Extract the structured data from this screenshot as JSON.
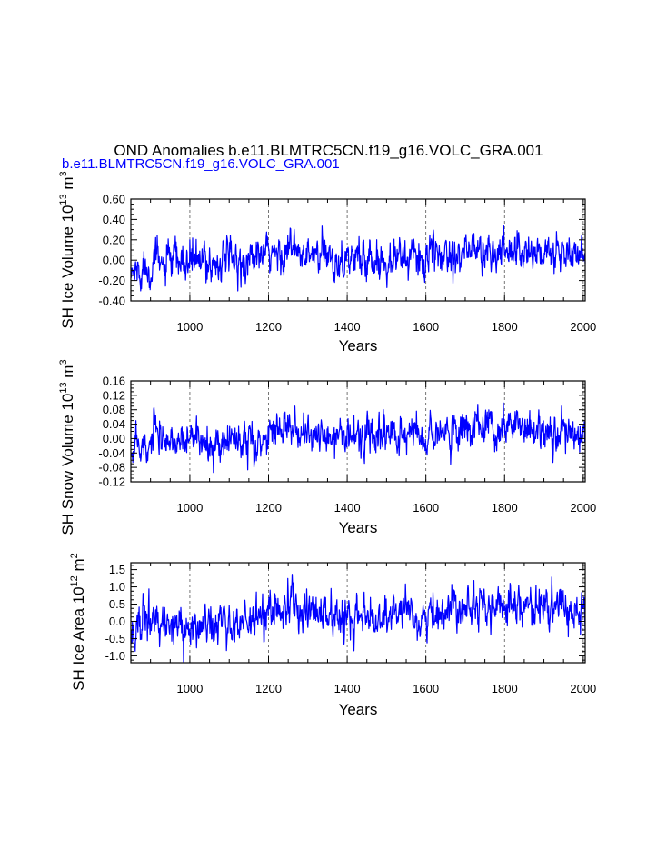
{
  "title": "OND Anomalies b.e11.BLMTRC5CN.f19_g16.VOLC_GRA.001",
  "subtitle": "b.e11.BLMTRC5CN.f19_g16.VOLC_GRA.001",
  "colors": {
    "series": "#0000ff",
    "axis": "#000000",
    "grid": "#555555",
    "subtitle": "#0000ff"
  },
  "chart_data": [
    {
      "type": "line",
      "xlabel": "Years",
      "ylabel": {
        "prefix": "SH Ice Volume 10",
        "exp": "13",
        "unit": " m",
        "unit_exp": "3"
      },
      "xlim": [
        850,
        2005
      ],
      "ylim": [
        -0.4,
        0.6
      ],
      "yticks": [
        -0.4,
        -0.2,
        0.0,
        0.2,
        0.4,
        0.6
      ],
      "ytick_labels": [
        "-0.40",
        "-0.20",
        "0.00",
        "0.20",
        "0.40",
        "0.60"
      ],
      "xticks": [
        1000,
        1200,
        1400,
        1600,
        1800,
        2000
      ],
      "xtick_labels": [
        "1000",
        "1200",
        "1400",
        "1600",
        "1800",
        "2000"
      ],
      "grid_x": true,
      "series": [
        {
          "name": "SH Ice Volume",
          "x_start": 850,
          "x_end": 2005,
          "values": [
            -0.15,
            -0.1,
            -0.12,
            -0.05,
            -0.08,
            0.02,
            -0.04,
            -0.06,
            -0.03,
            0.0,
            -0.02,
            -0.05,
            -0.04,
            0.01,
            -0.02,
            -0.03,
            0.0,
            -0.02,
            -0.04,
            -0.01,
            0.02,
            -0.01,
            0.0,
            -0.03,
            0.01,
            -0.02,
            0.02,
            0.0,
            0.03,
            0.05,
            0.04,
            0.06,
            0.05,
            0.1,
            0.12,
            0.09,
            0.04,
            0.03,
            0.02,
            0.05,
            0.04,
            0.02,
            0.04,
            0.0,
            -0.01,
            0.01,
            0.02,
            0.0,
            0.02,
            0.03,
            0.01,
            0.03,
            -0.02,
            0.0,
            0.03,
            0.02,
            0.05,
            0.04,
            0.01,
            0.03,
            0.05,
            0.02,
            -0.01,
            0.02,
            0.04,
            0.03,
            0.05,
            0.08,
            0.06,
            0.1,
            0.08,
            0.09,
            0.11,
            0.12,
            0.1,
            0.07,
            0.06,
            0.07,
            0.05,
            0.06,
            0.09,
            0.12,
            0.14,
            0.1,
            0.08,
            0.07,
            0.05,
            0.09,
            0.08,
            0.06,
            0.04,
            0.08,
            0.1,
            0.07,
            0.05,
            0.04,
            0.03,
            0.02
          ]
        }
      ]
    },
    {
      "type": "line",
      "xlabel": "Years",
      "ylabel": {
        "prefix": "SH Snow Volume 10",
        "exp": "13",
        "unit": " m",
        "unit_exp": "3"
      },
      "xlim": [
        850,
        2005
      ],
      "ylim": [
        -0.12,
        0.16
      ],
      "yticks": [
        -0.12,
        -0.08,
        -0.04,
        0.0,
        0.04,
        0.08,
        0.12,
        0.16
      ],
      "ytick_labels": [
        "-0.12",
        "-0.08",
        "-0.04",
        "0.00",
        "0.04",
        "0.08",
        "0.12",
        "0.16"
      ],
      "xticks": [
        1000,
        1200,
        1400,
        1600,
        1800,
        2000
      ],
      "xtick_labels": [
        "1000",
        "1200",
        "1400",
        "1600",
        "1800",
        "2000"
      ],
      "grid_x": true,
      "series": [
        {
          "name": "SH Snow Volume",
          "x_start": 850,
          "x_end": 2005,
          "values": [
            -0.04,
            -0.03,
            -0.035,
            -0.015,
            -0.025,
            0.005,
            -0.012,
            -0.018,
            -0.01,
            0.0,
            -0.006,
            -0.015,
            -0.012,
            0.003,
            -0.006,
            -0.009,
            0.0,
            -0.006,
            -0.012,
            -0.003,
            0.006,
            -0.003,
            0.0,
            -0.009,
            0.003,
            -0.006,
            0.006,
            0.0,
            0.009,
            0.015,
            0.012,
            0.018,
            0.015,
            0.028,
            0.034,
            0.025,
            0.012,
            0.009,
            0.006,
            0.015,
            0.012,
            0.006,
            0.012,
            0.0,
            -0.003,
            0.003,
            0.006,
            0.0,
            0.006,
            0.009,
            0.003,
            0.009,
            -0.006,
            0.0,
            0.009,
            0.006,
            0.015,
            0.012,
            0.003,
            0.009,
            0.015,
            0.006,
            -0.003,
            0.006,
            0.012,
            0.009,
            0.015,
            0.024,
            0.018,
            0.03,
            0.024,
            0.027,
            0.032,
            0.036,
            0.03,
            0.021,
            0.018,
            0.021,
            0.015,
            0.018,
            0.027,
            0.034,
            0.04,
            0.03,
            0.024,
            0.021,
            0.015,
            0.027,
            0.024,
            0.018,
            0.012,
            0.024,
            0.03,
            0.021,
            0.015,
            0.012,
            0.009,
            0.006
          ]
        }
      ]
    },
    {
      "type": "line",
      "xlabel": "Years",
      "ylabel": {
        "prefix": "SH Ice Area 10",
        "exp": "12",
        "unit": " m",
        "unit_exp": "2"
      },
      "xlim": [
        850,
        2005
      ],
      "ylim": [
        -1.2,
        1.7
      ],
      "yticks": [
        -1.0,
        -0.5,
        0.0,
        0.5,
        1.0,
        1.5
      ],
      "ytick_labels": [
        "-1.0",
        "-0.5",
        "0.0",
        "0.5",
        "1.0",
        "1.5"
      ],
      "xticks": [
        1000,
        1200,
        1400,
        1600,
        1800,
        2000
      ],
      "xtick_labels": [
        "1000",
        "1200",
        "1400",
        "1600",
        "1800",
        "2000"
      ],
      "grid_x": true,
      "series": [
        {
          "name": "SH Ice Area",
          "x_start": 850,
          "x_end": 2005,
          "values": [
            -0.45,
            -0.3,
            -0.1,
            0.05,
            -0.05,
            0.1,
            -0.15,
            -0.3,
            -0.2,
            -0.1,
            -0.2,
            -0.35,
            -0.3,
            -0.05,
            -0.15,
            -0.25,
            -0.05,
            -0.15,
            -0.25,
            -0.1,
            0.05,
            -0.05,
            0.0,
            -0.2,
            0.05,
            -0.1,
            0.1,
            0.0,
            0.15,
            0.3,
            0.25,
            0.35,
            0.3,
            0.5,
            0.6,
            0.45,
            0.2,
            0.15,
            0.1,
            0.3,
            0.25,
            0.1,
            0.25,
            0.0,
            -0.1,
            0.05,
            0.1,
            -0.05,
            0.1,
            0.15,
            0.05,
            0.15,
            -0.15,
            0.0,
            0.15,
            0.1,
            0.3,
            0.25,
            0.05,
            0.15,
            0.3,
            0.1,
            -0.1,
            0.1,
            0.25,
            0.15,
            0.3,
            0.45,
            0.35,
            0.55,
            0.45,
            0.5,
            0.6,
            0.65,
            0.55,
            0.4,
            0.35,
            0.4,
            0.3,
            0.35,
            0.5,
            0.6,
            0.7,
            0.55,
            0.45,
            0.4,
            0.3,
            0.5,
            0.45,
            0.35,
            0.25,
            0.45,
            0.55,
            0.4,
            0.3,
            0.25,
            0.2,
            0.1
          ]
        }
      ]
    }
  ]
}
